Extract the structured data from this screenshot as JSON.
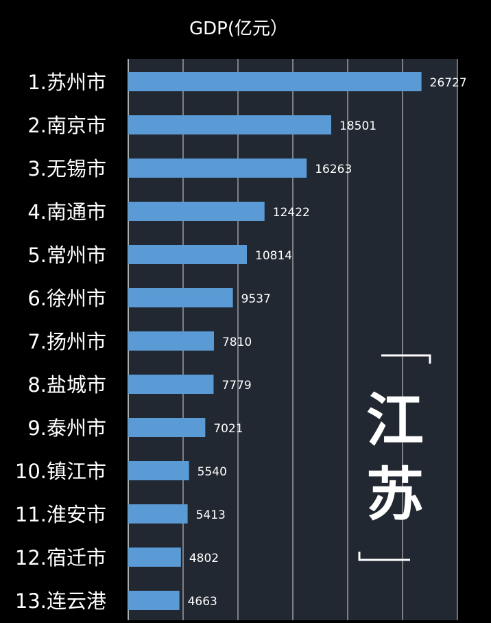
{
  "chart_data": {
    "type": "bar",
    "orientation": "horizontal",
    "title": "GDP(亿元）",
    "categories": [
      "1.苏州市",
      "2.南京市",
      "3.无锡市",
      "4.南通市",
      "5.常州市",
      "6.徐州市",
      "7.扬州市",
      "8.盐城市",
      "9.泰州市",
      "10.镇江市",
      "11.淮安市",
      "12.宿迁市",
      "13.连云港"
    ],
    "values": [
      26727,
      18501,
      16263,
      12422,
      10814,
      9537,
      7810,
      7779,
      7021,
      5540,
      5413,
      4802,
      4663
    ],
    "data_labels": [
      "26727",
      "18501",
      "16263",
      "12422",
      "10814",
      "9537",
      "7810",
      "7779",
      "7021",
      "5540",
      "5413",
      "4802",
      "4663"
    ],
    "xlim": [
      0,
      30000
    ],
    "grid": true,
    "annotation": {
      "chars": [
        "江",
        "苏"
      ],
      "bracket_open": "「",
      "bracket_close": "」"
    }
  },
  "colors": {
    "background": "#000000",
    "plot_background": "#222831",
    "bar": "#5b9bd5",
    "grid": "#d9d9d9",
    "category_text": "#ffffff",
    "value_text": "#ffffff",
    "annotation_text": "#ffffff"
  }
}
